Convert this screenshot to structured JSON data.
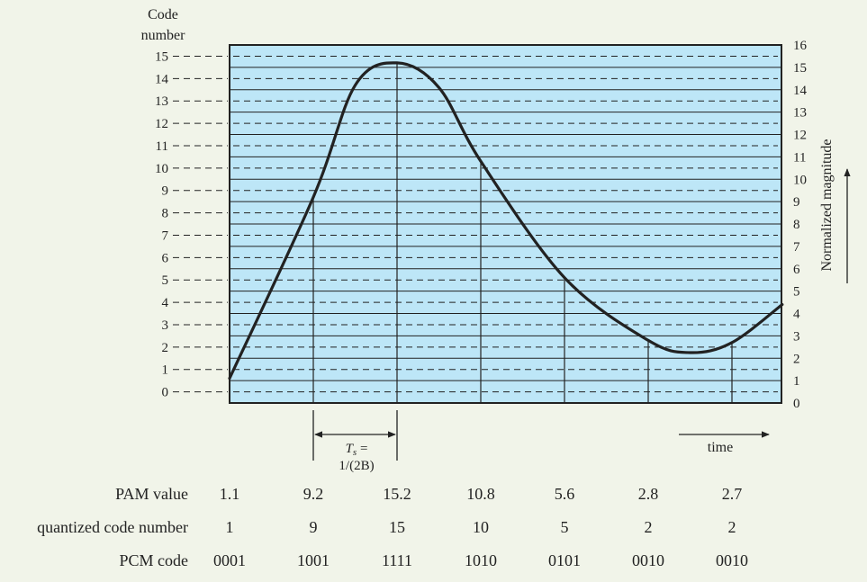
{
  "left_axis": {
    "title_line1": "Code",
    "title_line2": "number",
    "ticks": [
      "0",
      "1",
      "2",
      "3",
      "4",
      "5",
      "6",
      "7",
      "8",
      "9",
      "10",
      "11",
      "12",
      "13",
      "14",
      "15"
    ]
  },
  "right_axis": {
    "title": "Normalized magnitude",
    "ticks": [
      "0",
      "1",
      "2",
      "3",
      "4",
      "5",
      "6",
      "7",
      "8",
      "9",
      "10",
      "11",
      "12",
      "13",
      "14",
      "15",
      "16"
    ]
  },
  "time_label": "time",
  "sampling_interval": {
    "line1_symbol": "T",
    "line1_sub": "s",
    "line1_rest": " =",
    "line2": "1/(2B)"
  },
  "colors": {
    "plot_background": "#bde6f7",
    "plot_border": "#222222",
    "signal": "#222222",
    "page_background": "#f1f4e9"
  },
  "table": {
    "rows": [
      {
        "label": "PAM value",
        "values": [
          "1.1",
          "9.2",
          "15.2",
          "10.8",
          "5.6",
          "2.8",
          "2.7"
        ]
      },
      {
        "label": "quantized code number",
        "values": [
          "1",
          "9",
          "15",
          "10",
          "5",
          "2",
          "2"
        ]
      },
      {
        "label": "PCM code",
        "values": [
          "0001",
          "1001",
          "1111",
          "1010",
          "0101",
          "0010",
          "0010"
        ]
      }
    ]
  },
  "chart_data": {
    "type": "line",
    "x": [
      0,
      1,
      2,
      3,
      4,
      5,
      6
    ],
    "series": [
      {
        "values": [
          1.1,
          9.2,
          15.2,
          10.8,
          5.6,
          2.8,
          2.7
        ]
      }
    ],
    "ylim": [
      0,
      16
    ],
    "grid": true
  }
}
